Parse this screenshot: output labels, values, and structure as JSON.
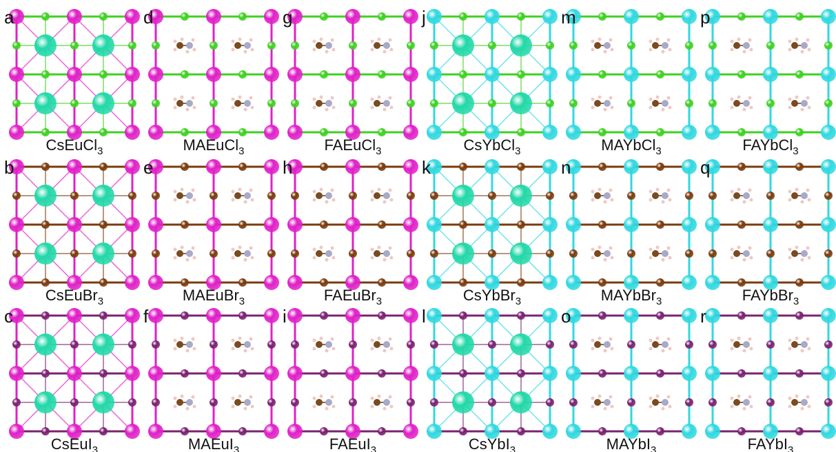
{
  "panels": [
    {
      "letter": "a",
      "formula": "CsEuCl",
      "sub": "3"
    },
    {
      "letter": "b",
      "formula": "CsEuBr",
      "sub": "3"
    },
    {
      "letter": "c",
      "formula": "CsEuI",
      "sub": "3"
    },
    {
      "letter": "d",
      "formula": "MAEuCl",
      "sub": "3"
    },
    {
      "letter": "e",
      "formula": "MAEuBr",
      "sub": "3"
    },
    {
      "letter": "f",
      "formula": "MAEuI",
      "sub": "3"
    },
    {
      "letter": "g",
      "formula": "FAEuCl",
      "sub": "3"
    },
    {
      "letter": "h",
      "formula": "FAEuBr",
      "sub": "3"
    },
    {
      "letter": "i",
      "formula": "FAEuI",
      "sub": "3"
    },
    {
      "letter": "j",
      "formula": "CsYbCl",
      "sub": "3"
    },
    {
      "letter": "k",
      "formula": "CsYbBr",
      "sub": "3"
    },
    {
      "letter": "l",
      "formula": "CsYbI",
      "sub": "3"
    },
    {
      "letter": "m",
      "formula": "MAYbCl",
      "sub": "3"
    },
    {
      "letter": "n",
      "formula": "MAYbBr",
      "sub": "3"
    },
    {
      "letter": "o",
      "formula": "MAYbI",
      "sub": "3"
    },
    {
      "letter": "p",
      "formula": "FAYbCl",
      "sub": "3"
    },
    {
      "letter": "q",
      "formula": "FAYbBr",
      "sub": "3"
    },
    {
      "letter": "r",
      "formula": "FAYbI",
      "sub": "3"
    }
  ]
}
